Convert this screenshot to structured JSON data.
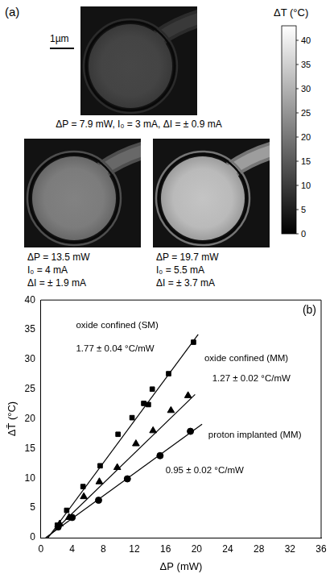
{
  "heatmap_panel": {
    "label": "(a)",
    "scale_bar": "1µm",
    "ambient_dT": 3,
    "colorbar": {
      "title": "ΔT (°C)",
      "range": [
        0,
        43
      ],
      "ticks": [
        0,
        5,
        10,
        15,
        20,
        25,
        30,
        35,
        40
      ]
    },
    "images": [
      {
        "center_dT": 12,
        "caption": [
          "ΔP = 7.9 mW, I₀ = 3 mA, ΔI = ± 0.9 mA"
        ]
      },
      {
        "center_dT": 22,
        "caption": [
          "ΔP = 13.5 mW",
          "I₀ = 4 mA",
          "ΔI = ± 1.9 mA"
        ]
      },
      {
        "center_dT": 33,
        "caption": [
          "ΔP = 19.7 mW",
          "I₀ = 5.5 mA",
          "ΔI = ± 3.7 mA"
        ]
      }
    ]
  },
  "chart_data": {
    "type": "scatter",
    "panel_label": "(b)",
    "x_label": "ΔP (mW)",
    "y_label": "ΔT̄ (°C)",
    "xlim": [
      0,
      36
    ],
    "xticks": [
      0,
      4,
      8,
      12,
      16,
      20,
      24,
      28,
      32,
      36
    ],
    "ylim": [
      0,
      40
    ],
    "yticks": [
      0,
      5,
      10,
      15,
      20,
      25,
      30,
      35,
      40
    ],
    "grid": false,
    "series": [
      {
        "name": "oxide confined (SM)",
        "name_at": [
          4.5,
          35.7
        ],
        "color": "#000000",
        "marker": "square",
        "x": [
          2.1,
          3.3,
          5.4,
          7.6,
          9.9,
          11.7,
          13.2,
          13.8,
          14.3,
          16.4,
          19.6
        ],
        "values": [
          2.1,
          4.6,
          8.6,
          12.1,
          17.4,
          20.2,
          22.6,
          22.4,
          25.0,
          27.6,
          32.9
        ],
        "fit": {
          "label": "1.77 ± 0.04 °C/mW",
          "label_at": [
            4.5,
            31.8
          ],
          "line_style": "solid",
          "x": [
            0.9,
            20.2
          ],
          "values": [
            0,
            34.2
          ]
        }
      },
      {
        "name": "oxide confined (MM)",
        "name_at": [
          21,
          30.2
        ],
        "color": "#000000",
        "marker": "triangle",
        "x": [
          2.4,
          3.6,
          5.5,
          7.5,
          9.8,
          12.2,
          14.4,
          16.7,
          18.9
        ],
        "values": [
          2.3,
          3.4,
          6.9,
          9.4,
          11.8,
          15.8,
          18.0,
          21.4,
          23.9
        ],
        "fit": {
          "label": "1.27 ± 0.02 °C/mW",
          "label_at": [
            22,
            26.8
          ],
          "line_style": "solid",
          "x": [
            0.8,
            19.8
          ],
          "values": [
            0,
            24.1
          ]
        }
      },
      {
        "name": "proton implanted (MM)",
        "name_at": [
          21.5,
          17.2
        ],
        "color": "#000000",
        "marker": "circle",
        "x": [
          2.2,
          4.0,
          7.4,
          11.1,
          15.3,
          19.2
        ],
        "values": [
          1.8,
          3.4,
          6.3,
          9.9,
          13.8,
          17.9
        ],
        "fit": {
          "label": "0.95 ± 0.02 °C/mW",
          "label_at": [
            16,
            11.3
          ],
          "line_style": "solid",
          "x": [
            0.6,
            20.7
          ],
          "values": [
            0,
            19.1
          ]
        }
      }
    ]
  }
}
